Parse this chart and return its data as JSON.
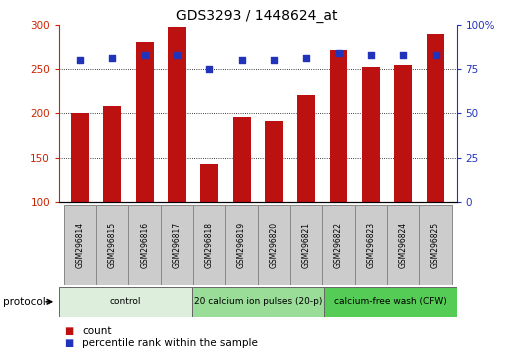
{
  "title": "GDS3293 / 1448624_at",
  "samples": [
    "GSM296814",
    "GSM296815",
    "GSM296816",
    "GSM296817",
    "GSM296818",
    "GSM296819",
    "GSM296820",
    "GSM296821",
    "GSM296822",
    "GSM296823",
    "GSM296824",
    "GSM296825"
  ],
  "counts": [
    200,
    208,
    280,
    297,
    143,
    196,
    191,
    221,
    272,
    252,
    255,
    290
  ],
  "percentiles": [
    80,
    81,
    83,
    83,
    75,
    80,
    80,
    81,
    84,
    83,
    83,
    83
  ],
  "bar_color": "#BB1111",
  "dot_color": "#2233BB",
  "y_min": 100,
  "y_max": 300,
  "y_ticks": [
    100,
    150,
    200,
    250,
    300
  ],
  "y2_ticks": [
    0,
    25,
    50,
    75,
    100
  ],
  "protocols": [
    {
      "label": "control",
      "start": 0,
      "end": 4,
      "color": "#DDEEDD"
    },
    {
      "label": "20 calcium ion pulses (20-p)",
      "start": 4,
      "end": 8,
      "color": "#99DD99"
    },
    {
      "label": "calcium-free wash (CFW)",
      "start": 8,
      "end": 12,
      "color": "#55CC55"
    }
  ],
  "legend_count_label": "count",
  "legend_pct_label": "percentile rank within the sample",
  "protocol_label": "protocol",
  "bg_color": "#FFFFFF",
  "plot_bg_color": "#FFFFFF",
  "label_color_left": "#CC2200",
  "label_color_right": "#2233BB",
  "sample_box_color": "#CCCCCC"
}
